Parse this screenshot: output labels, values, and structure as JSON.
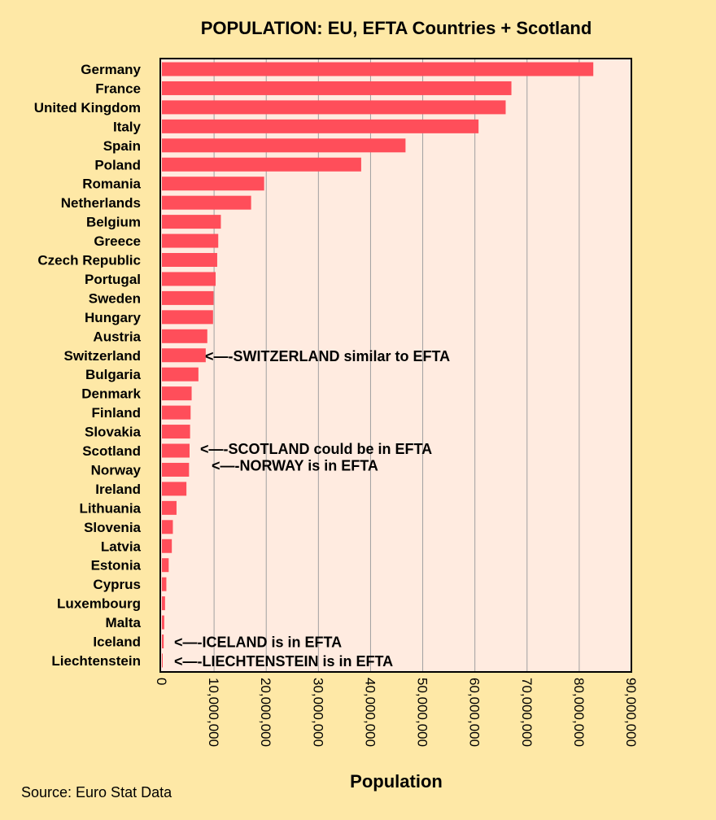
{
  "chart_data": {
    "type": "bar",
    "orientation": "horizontal",
    "title": "POPULATION: EU, EFTA Countries + Scotland",
    "xlabel": "Population",
    "ylabel": "",
    "xlim": [
      0,
      90000000
    ],
    "grid": true,
    "colors": {
      "bar": "#ff4e5a",
      "plot_bg": "#ffebe0",
      "page_bg": "#fee8a6",
      "grid": "#a0a0a0"
    },
    "x_ticks": [
      "0",
      "10,000,000",
      "20,000,000",
      "30,000,000",
      "40,000,000",
      "50,000,000",
      "60,000,000",
      "70,000,000",
      "80,000,000",
      "90,000,000"
    ],
    "categories": [
      "Germany",
      "France",
      "United Kingdom",
      "Italy",
      "Spain",
      "Poland",
      "Romania",
      "Netherlands",
      "Belgium",
      "Greece",
      "Czech Republic",
      "Portugal",
      "Sweden",
      "Hungary",
      "Austria",
      "Switzerland",
      "Bulgaria",
      "Denmark",
      "Finland",
      "Slovakia",
      "Scotland",
      "Norway",
      "Ireland",
      "Lithuania",
      "Slovenia",
      "Latvia",
      "Estonia",
      "Cyprus",
      "Luxembourg",
      "Malta",
      "Iceland",
      "Liechtenstein"
    ],
    "values": [
      82700000,
      67000000,
      65900000,
      60700000,
      46700000,
      38200000,
      19600000,
      17100000,
      11300000,
      10800000,
      10600000,
      10300000,
      9900000,
      9800000,
      8700000,
      8400000,
      7000000,
      5700000,
      5500000,
      5400000,
      5300000,
      5200000,
      4700000,
      2800000,
      2100000,
      1900000,
      1300000,
      850000,
      600000,
      450000,
      340000,
      38000
    ],
    "annotations": [
      {
        "category": "Switzerland",
        "text": "<—-SWITZERLAND similar to EFTA"
      },
      {
        "category": "Scotland",
        "text": "<—-SCOTLAND could be in EFTA"
      },
      {
        "category": "Norway",
        "text": "<—-NORWAY is in EFTA"
      },
      {
        "category": "Iceland",
        "text": "<—-ICELAND is in EFTA"
      },
      {
        "category": "Liechtenstein",
        "text": "<—-LIECHTENSTEIN is in EFTA"
      }
    ],
    "source": "Source: Euro Stat Data"
  }
}
